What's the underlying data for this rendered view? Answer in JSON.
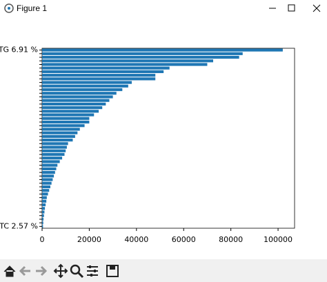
{
  "window": {
    "title": "Figure 1"
  },
  "chart_data": {
    "type": "bar",
    "orientation": "horizontal",
    "color": "#1f77b4",
    "categories": [
      "TG 6.91 %",
      null,
      null,
      null,
      null,
      null,
      null,
      null,
      null,
      null,
      null,
      null,
      null,
      null,
      null,
      null,
      null,
      null,
      null,
      null,
      null,
      null,
      null,
      null,
      null,
      null,
      null,
      null,
      null,
      null,
      null,
      null,
      null,
      null,
      null,
      null,
      null,
      null,
      null,
      null,
      null,
      null,
      null,
      null,
      null,
      null,
      null,
      null,
      null,
      "TC 2.57 %"
    ],
    "values": [
      102000,
      85000,
      83500,
      72500,
      70000,
      54000,
      51500,
      48000,
      48000,
      38000,
      36500,
      34000,
      31500,
      30000,
      28500,
      27000,
      25500,
      24000,
      22000,
      20000,
      20000,
      18000,
      16000,
      15000,
      14000,
      13000,
      11000,
      10500,
      10000,
      9500,
      8500,
      7500,
      6500,
      6000,
      5500,
      5000,
      4500,
      4000,
      3500,
      3000,
      2500,
      2000,
      1800,
      1500,
      1200,
      1000,
      800,
      600,
      500,
      400
    ],
    "xlim": [
      0,
      107000
    ],
    "xticks": [
      0,
      20000,
      40000,
      60000,
      80000,
      100000
    ]
  }
}
